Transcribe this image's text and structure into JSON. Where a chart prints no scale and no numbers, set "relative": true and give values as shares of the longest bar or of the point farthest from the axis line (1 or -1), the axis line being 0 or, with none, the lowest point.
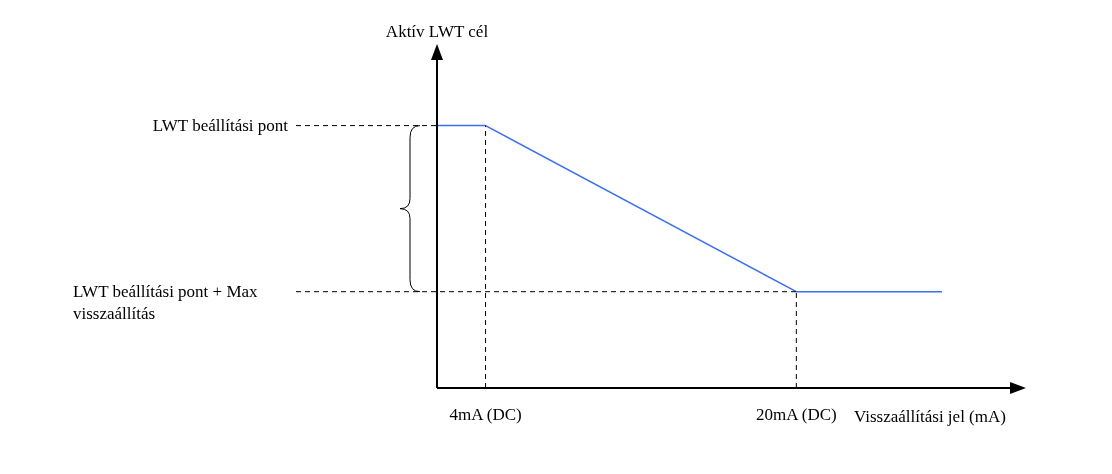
{
  "chart_data": {
    "type": "line",
    "ylabel": "Aktív LWT cél",
    "xlabel": "Visszaállítási jel (mA)",
    "relative": true,
    "x": [
      1.5,
      4,
      20,
      27.5
    ],
    "series": [
      {
        "color": "#3a6ff0",
        "values": [
          1,
          1,
          0.367,
          0.367
        ]
      }
    ],
    "xlim": [
      1.5,
      31
    ],
    "xticks": [
      {
        "value": 4,
        "label": "4mA (DC)"
      },
      {
        "value": 20,
        "label": "20mA (DC)"
      }
    ],
    "ref_lines": [
      {
        "axis": "y",
        "value": 1,
        "label": "LWT beállítási pont",
        "line_style": "dashed"
      },
      {
        "axis": "y",
        "value": 0.367,
        "label": "LWT beállítási pont + Max visszaállítás",
        "line_style": "dashed"
      },
      {
        "axis": "x",
        "value": 4,
        "line_style": "dashed"
      },
      {
        "axis": "x",
        "value": 20,
        "line_style": "dashed"
      }
    ],
    "marker": "none",
    "line_style": "solid"
  }
}
